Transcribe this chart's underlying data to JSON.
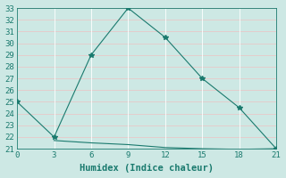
{
  "line1_x": [
    0,
    3,
    6,
    9,
    12,
    15,
    18,
    21
  ],
  "line1_y": [
    25,
    22,
    29,
    33,
    30.5,
    27,
    24.5,
    21
  ],
  "line2_x": [
    3,
    6,
    9,
    12,
    15,
    18,
    21
  ],
  "line2_y": [
    21.7,
    21.5,
    21.35,
    21.1,
    21.0,
    20.95,
    21.0
  ],
  "line_color": "#1a7a6e",
  "bg_color": "#cde8e4",
  "grid_color_h": "#e8c8c8",
  "grid_color_v": "#ffffff",
  "xlabel": "Humidex (Indice chaleur)",
  "xlim": [
    0,
    21
  ],
  "ylim": [
    21,
    33
  ],
  "xticks": [
    0,
    3,
    6,
    9,
    12,
    15,
    18,
    21
  ],
  "yticks": [
    21,
    22,
    23,
    24,
    25,
    26,
    27,
    28,
    29,
    30,
    31,
    32,
    33
  ],
  "tick_fontsize": 6.5,
  "xlabel_fontsize": 7.5
}
